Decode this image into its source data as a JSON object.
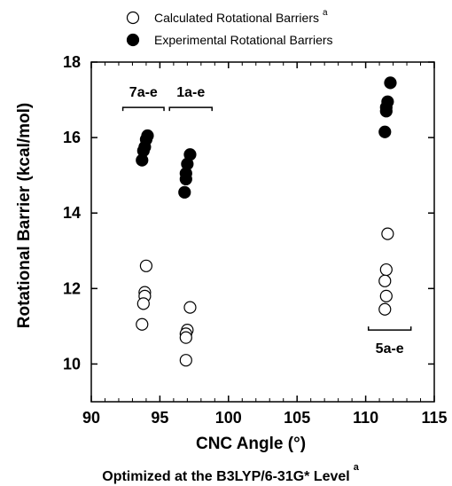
{
  "chart_data": {
    "type": "scatter",
    "xlabel": "CNC Angle (°)",
    "ylabel": "Rotational Barrier (kcal/mol)",
    "xlim": [
      90,
      115
    ],
    "ylim": [
      9,
      18
    ],
    "x_ticks": [
      90,
      95,
      100,
      105,
      110,
      115
    ],
    "y_ticks": [
      10,
      12,
      14,
      16,
      18
    ],
    "x_tick_labels": [
      "90",
      "95",
      "100",
      "105",
      "110",
      "115"
    ],
    "y_tick_labels": [
      "10",
      "12",
      "14",
      "16",
      "18"
    ],
    "grid": false,
    "legend_placement": "top-center",
    "footnote": "Optimized at the B3LYP/6-31G* Level",
    "footnote_superscript": "a",
    "series": [
      {
        "name": "Calculated Rotational Barriers",
        "name_superscript": "a",
        "marker": "open-circle",
        "points": [
          {
            "x": 94.0,
            "y": 12.6
          },
          {
            "x": 93.9,
            "y": 11.9
          },
          {
            "x": 93.9,
            "y": 11.8
          },
          {
            "x": 93.8,
            "y": 11.6
          },
          {
            "x": 93.7,
            "y": 11.05
          },
          {
            "x": 97.2,
            "y": 11.5
          },
          {
            "x": 97.0,
            "y": 10.9
          },
          {
            "x": 96.9,
            "y": 10.8
          },
          {
            "x": 96.9,
            "y": 10.7
          },
          {
            "x": 96.9,
            "y": 10.1
          },
          {
            "x": 111.6,
            "y": 13.45
          },
          {
            "x": 111.5,
            "y": 12.5
          },
          {
            "x": 111.4,
            "y": 12.2
          },
          {
            "x": 111.5,
            "y": 11.8
          },
          {
            "x": 111.4,
            "y": 11.45
          }
        ]
      },
      {
        "name": "Experimental Rotational Barriers",
        "marker": "filled-circle",
        "points": [
          {
            "x": 94.1,
            "y": 16.05
          },
          {
            "x": 94.0,
            "y": 15.95
          },
          {
            "x": 93.9,
            "y": 15.75
          },
          {
            "x": 93.8,
            "y": 15.65
          },
          {
            "x": 93.7,
            "y": 15.4
          },
          {
            "x": 97.2,
            "y": 15.55
          },
          {
            "x": 97.0,
            "y": 15.3
          },
          {
            "x": 96.9,
            "y": 15.05
          },
          {
            "x": 96.9,
            "y": 14.9
          },
          {
            "x": 96.8,
            "y": 14.55
          },
          {
            "x": 111.8,
            "y": 17.45
          },
          {
            "x": 111.6,
            "y": 16.95
          },
          {
            "x": 111.5,
            "y": 16.8
          },
          {
            "x": 111.5,
            "y": 16.7
          },
          {
            "x": 111.4,
            "y": 16.15
          }
        ]
      }
    ],
    "annotations": [
      {
        "label": "7a-e",
        "x_from": 92.3,
        "x_to": 95.3,
        "y": 16.8,
        "label_side": "above"
      },
      {
        "label": "1a-e",
        "x_from": 95.7,
        "x_to": 98.8,
        "y": 16.8,
        "label_side": "above"
      },
      {
        "label": "5a-e",
        "x_from": 110.2,
        "x_to": 113.3,
        "y": 10.9,
        "label_side": "below"
      }
    ]
  }
}
